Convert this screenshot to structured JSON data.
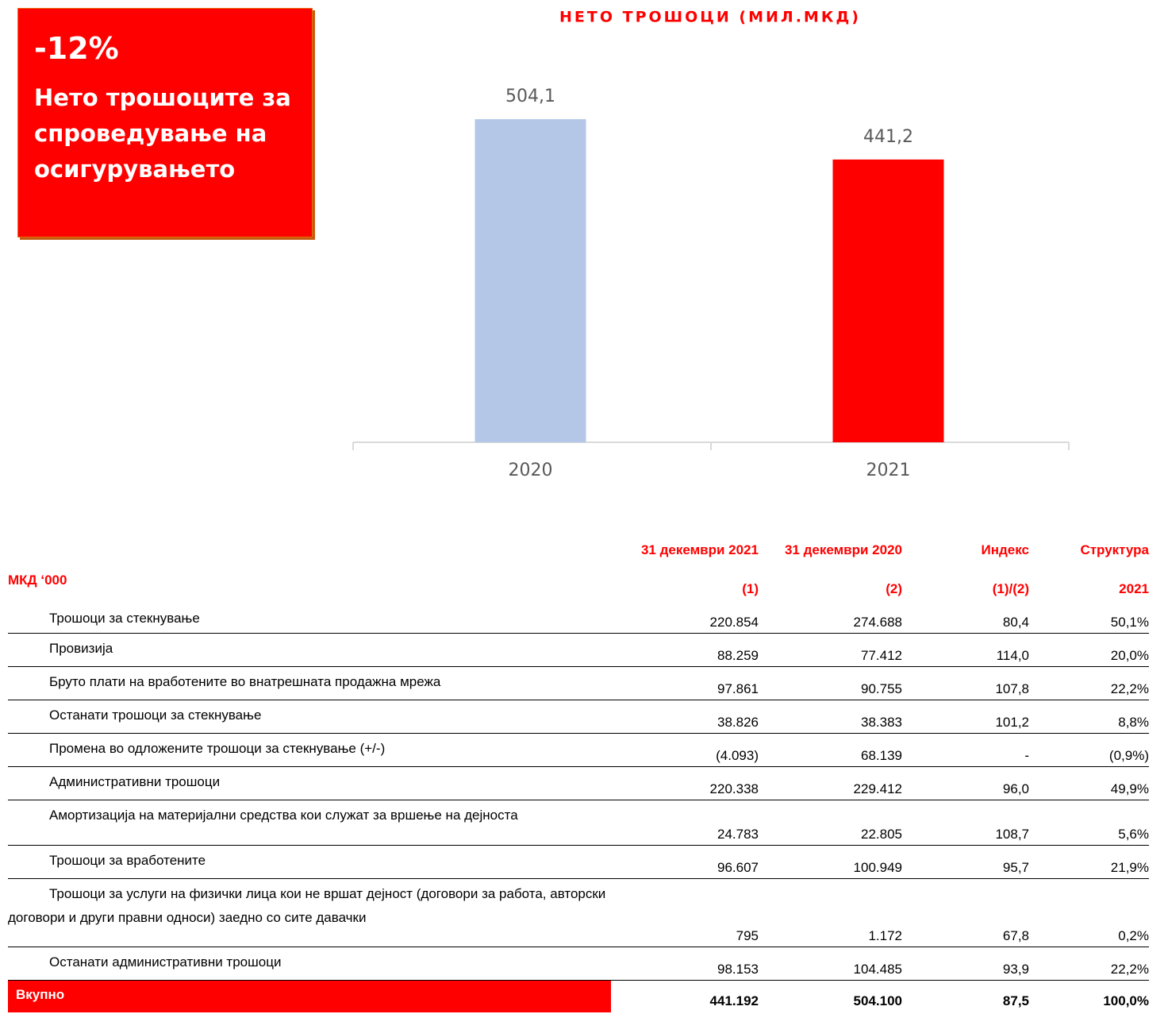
{
  "callout": {
    "headline": "-12%",
    "text": "Нето трошоците за спроведување на осигурувањето"
  },
  "chart_data": {
    "type": "bar",
    "title": "НЕТО ТРОШОЦИ (МИЛ.МКД)",
    "categories": [
      "2020",
      "2021"
    ],
    "values": [
      504.1,
      441.2
    ],
    "value_labels": [
      "504,1",
      "441,2"
    ],
    "colors": [
      "#b4c7e7",
      "#ff0000"
    ],
    "ylim": [
      0,
      560
    ]
  },
  "table": {
    "unit": "МКД ‘000",
    "header": [
      "31 декември 2021",
      "31 декември 2020",
      "Индекс",
      "Структура"
    ],
    "subheader": [
      "(1)",
      "(2)",
      "(1)/(2)",
      "2021"
    ],
    "rows": [
      [
        "Трошоци за стекнување",
        "220.854",
        "274.688",
        "80,4",
        "50,1%"
      ],
      [
        "Провизија",
        "88.259",
        "77.412",
        "114,0",
        "20,0%"
      ],
      [
        "Бруто плати на вработените во внатрешната продажна мрежа",
        "97.861",
        "90.755",
        "107,8",
        "22,2%"
      ],
      [
        "Останати трошоци за стекнување",
        "38.826",
        "38.383",
        "101,2",
        "8,8%"
      ],
      [
        "Промена во одложените трошоци за стекнување (+/-)",
        "(4.093)",
        "68.139",
        "-",
        "(0,9%)"
      ],
      [
        "Административни трошоци",
        "220.338",
        "229.412",
        "96,0",
        "49,9%"
      ],
      [
        "Амортизација на материјални средства кои служат за вршење на дејноста",
        "24.783",
        "22.805",
        "108,7",
        "5,6%"
      ],
      [
        "Трошоци за вработените",
        "96.607",
        "100.949",
        "95,7",
        "21,9%"
      ],
      [
        "Трошоци за услуги на физички лица кои не вршат дејност (договори за работа, авторски договори и други правни односи) заедно со сите давачки",
        "795",
        "1.172",
        "67,8",
        "0,2%"
      ],
      [
        "Останати административни трошоци",
        "98.153",
        "104.485",
        "93,9",
        "22,2%"
      ]
    ],
    "total": [
      "Вкупно",
      "441.192",
      "504.100",
      "87,5",
      "100,0%"
    ]
  }
}
